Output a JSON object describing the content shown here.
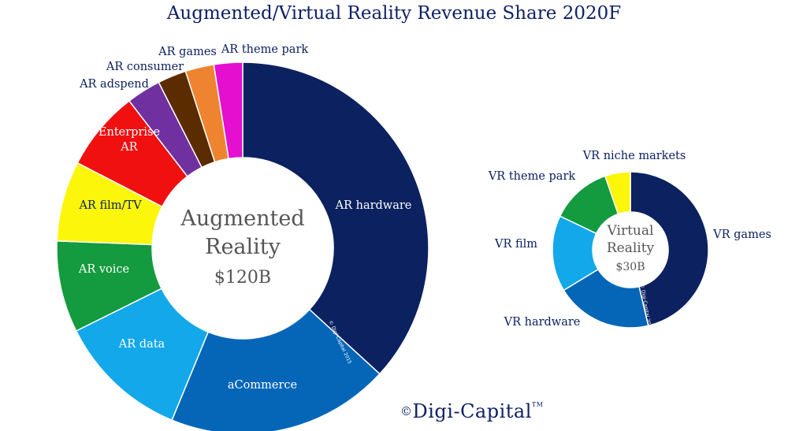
{
  "title": "Augmented/Virtual Reality Revenue Share 2020F",
  "logo": {
    "copyright": "©",
    "name": "Digi-Capital",
    "tm": "TM"
  },
  "chart_data": [
    {
      "type": "pie",
      "center_label": [
        "Augmented",
        "Reality",
        "$120B"
      ],
      "watermark": "© Digi-Capital 2015",
      "slices": [
        {
          "label": "AR hardware",
          "value": 37,
          "color": "#0c2160",
          "text_color": "#ffffff"
        },
        {
          "label": "aCommerce",
          "value": 19.5,
          "color": "#0566b8",
          "text_color": "#ffffff"
        },
        {
          "label": "AR data",
          "value": 11.5,
          "color": "#12a8ea",
          "text_color": "#ffffff"
        },
        {
          "label": "AR voice",
          "value": 8,
          "color": "#149a3f",
          "text_color": "#ffffff"
        },
        {
          "label": "AR film/TV",
          "value": 7,
          "color": "#fcf60a",
          "text_color": "#0c2160"
        },
        {
          "label": [
            "Enterprise",
            "AR"
          ],
          "value": 7,
          "color": "#f01010",
          "text_color": "#ffffff"
        },
        {
          "label": "AR adspend",
          "value": 3,
          "color": "#7030a0",
          "text_color": "#0c2160"
        },
        {
          "label": "AR consumer",
          "value": 2.5,
          "color": "#5a2c00",
          "text_color": "#0c2160"
        },
        {
          "label": "AR games",
          "value": 2.5,
          "color": "#ee8430",
          "text_color": "#0c2160"
        },
        {
          "label": "AR theme park",
          "value": 2.5,
          "color": "#e50fcf",
          "text_color": "#0c2160"
        }
      ]
    },
    {
      "type": "pie",
      "center_label": [
        "Virtual",
        "Reality",
        "$30B"
      ],
      "watermark": "© Digi-Capital 2015",
      "slices": [
        {
          "label": "VR games",
          "value": 44,
          "color": "#0c2160",
          "text_color": "#0c2160"
        },
        {
          "label": "VR hardware",
          "value": 19,
          "color": "#0566b8",
          "text_color": "#0c2160"
        },
        {
          "label": "VR film",
          "value": 15,
          "color": "#12a8ea",
          "text_color": "#0c2160"
        },
        {
          "label": "VR theme park",
          "value": 12,
          "color": "#149a3f",
          "text_color": "#0c2160"
        },
        {
          "label": "VR niche markets",
          "value": 5,
          "color": "#fcf60a",
          "text_color": "#0c2160"
        }
      ]
    }
  ]
}
